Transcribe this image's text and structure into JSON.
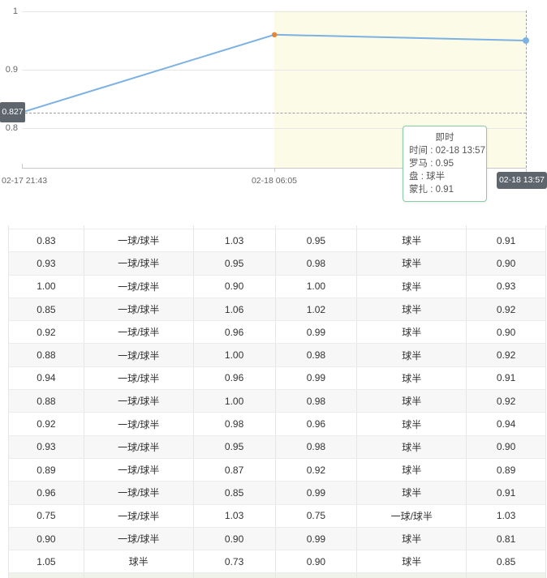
{
  "chart": {
    "y_ticks": [
      "1",
      "0.9",
      "0.8"
    ],
    "x_ticks": [
      "02-17 21:43",
      "02-18 06:05",
      "02-18 13:57"
    ],
    "current_value_label": "0.827",
    "current_time_badge": "02-18 13:57",
    "tooltip": {
      "title": "即时",
      "rows": [
        {
          "label": "时间",
          "value": "02-18 13:57"
        },
        {
          "label": "罗马",
          "value": "0.95"
        },
        {
          "label": "盘",
          "value": "球半"
        },
        {
          "label": "蒙扎",
          "value": "0.91"
        }
      ]
    }
  },
  "chart_data": {
    "type": "line",
    "x": [
      "02-17 21:43",
      "02-18 06:05",
      "02-18 13:57"
    ],
    "series": [
      {
        "name": "罗马",
        "values": [
          0.827,
          0.96,
          0.95
        ]
      }
    ],
    "ylim": [
      0.75,
      1.0
    ],
    "y_gridlines": [
      1,
      0.9,
      0.8
    ],
    "dashed_reference_y": 0.827,
    "highlight_x_range": [
      "02-18 06:05",
      "02-18 13:57"
    ],
    "grid": true,
    "legend": "none",
    "colors": {
      "line": "#7cb1e4",
      "marker_change": "#e2883b",
      "marker_current": "#7cb1e4",
      "highlight_bg": "#fcfbe7",
      "badge_bg": "#5f656c",
      "tooltip_border": "#8bcaa4"
    }
  },
  "table": {
    "rows": [
      [
        "0.83",
        "一球/球半",
        "1.03",
        "0.95",
        "球半",
        "0.91"
      ],
      [
        "0.93",
        "一球/球半",
        "0.95",
        "0.98",
        "球半",
        "0.90"
      ],
      [
        "1.00",
        "一球/球半",
        "0.90",
        "1.00",
        "球半",
        "0.93"
      ],
      [
        "0.85",
        "一球/球半",
        "1.06",
        "1.02",
        "球半",
        "0.92"
      ],
      [
        "0.92",
        "一球/球半",
        "0.96",
        "0.99",
        "球半",
        "0.90"
      ],
      [
        "0.88",
        "一球/球半",
        "1.00",
        "0.98",
        "球半",
        "0.92"
      ],
      [
        "0.94",
        "一球/球半",
        "0.96",
        "0.99",
        "球半",
        "0.91"
      ],
      [
        "0.88",
        "一球/球半",
        "1.00",
        "0.98",
        "球半",
        "0.92"
      ],
      [
        "0.92",
        "一球/球半",
        "0.98",
        "0.96",
        "球半",
        "0.94"
      ],
      [
        "0.93",
        "一球/球半",
        "0.95",
        "0.98",
        "球半",
        "0.90"
      ],
      [
        "0.89",
        "一球/球半",
        "0.87",
        "0.92",
        "球半",
        "0.89"
      ],
      [
        "0.96",
        "一球/球半",
        "0.85",
        "0.99",
        "球半",
        "0.91"
      ],
      [
        "0.75",
        "一球/球半",
        "1.03",
        "0.75",
        "一球/球半",
        "1.03"
      ],
      [
        "0.90",
        "一球/球半",
        "0.90",
        "0.99",
        "球半",
        "0.81"
      ],
      [
        "1.05",
        "球半",
        "0.73",
        "0.90",
        "球半",
        "0.85"
      ]
    ]
  }
}
